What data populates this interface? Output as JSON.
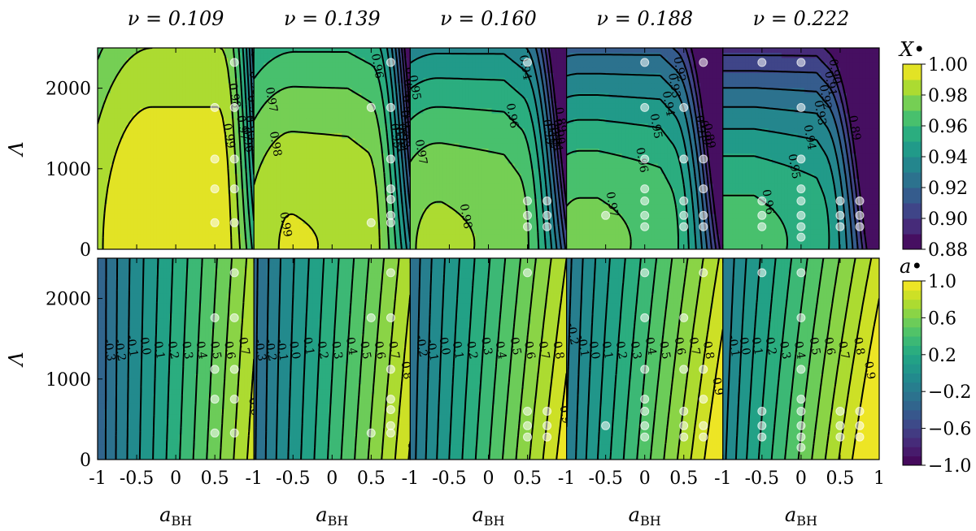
{
  "chart_data": {
    "type": "heatmap",
    "panel_titles": [
      "ν = 0.109",
      "ν = 0.139",
      "ν = 0.160",
      "ν = 0.188",
      "ν = 0.222"
    ],
    "nu": [
      0.109,
      0.139,
      0.16,
      0.188,
      0.222
    ],
    "xlabel": "a",
    "xlabel_sub": "BH",
    "ylabel": "Λ",
    "xlim": [
      -1,
      1
    ],
    "ylim": [
      0,
      2500
    ],
    "x_ticks": [
      "-1",
      "-0.5",
      "0",
      "0.5",
      "1"
    ],
    "y_ticks": [
      "0",
      "1000",
      "2000"
    ],
    "rows": [
      {
        "quantity": "X",
        "colorbar_label": "X•",
        "colorbar_range": [
          0.88,
          1.0
        ],
        "colorbar_ticks": [
          "0.88",
          "0.90",
          "0.92",
          "0.94",
          "0.96",
          "0.98",
          "1.00"
        ],
        "contour_levels": [
          0.89,
          0.9,
          0.91,
          0.92,
          0.93,
          0.94,
          0.95,
          0.96,
          0.97,
          0.98,
          0.99
        ]
      },
      {
        "quantity": "a",
        "colorbar_label": "a•",
        "colorbar_range": [
          -1.0,
          1.0
        ],
        "colorbar_ticks": [
          "−1.0",
          "−0.6",
          "−0.2",
          "0.2",
          "0.6",
          "1.0"
        ],
        "contour_levels": [
          -0.3,
          -0.2,
          -0.1,
          0.0,
          0.1,
          0.2,
          0.3,
          0.4,
          0.5,
          0.6,
          0.7,
          0.8,
          0.9
        ]
      }
    ],
    "simulation_points": [
      {
        "nu": 0.109,
        "a_BH": [
          0.5,
          0.5,
          0.5,
          0.5,
          0.75,
          0.75,
          0.75,
          0.75,
          0.75
        ],
        "Lambda": [
          330,
          750,
          1120,
          1760,
          330,
          750,
          1120,
          1760,
          2320
        ]
      },
      {
        "nu": 0.139,
        "a_BH": [
          0.5,
          0.5,
          0.75,
          0.75,
          0.75,
          0.75,
          0.75,
          0.75,
          0.75
        ],
        "Lambda": [
          330,
          1760,
          330,
          420,
          620,
          750,
          1120,
          1760,
          2320
        ]
      },
      {
        "nu": 0.16,
        "a_BH": [
          0.5,
          0.5,
          0.5,
          0.5,
          0.75,
          0.75,
          0.75
        ],
        "Lambda": [
          280,
          420,
          600,
          2320,
          280,
          420,
          600
        ]
      },
      {
        "nu": 0.188,
        "a_BH": [
          -0.5,
          0,
          0,
          0,
          0,
          0,
          0,
          0,
          0.5,
          0.5,
          0.5,
          0.5,
          0.5,
          0.75,
          0.75,
          0.75,
          0.75,
          0.75
        ],
        "Lambda": [
          420,
          280,
          420,
          600,
          750,
          1120,
          1760,
          2320,
          280,
          420,
          600,
          1120,
          1760,
          280,
          420,
          750,
          1120,
          2320
        ]
      },
      {
        "nu": 0.222,
        "a_BH": [
          -0.5,
          -0.5,
          -0.5,
          -0.5,
          0,
          0,
          0,
          0,
          0,
          0,
          0,
          0,
          0.5,
          0.5,
          0.5,
          0.75,
          0.75,
          0.75
        ],
        "Lambda": [
          280,
          420,
          600,
          2320,
          150,
          280,
          420,
          600,
          750,
          1120,
          1760,
          2320,
          280,
          420,
          600,
          280,
          420,
          600
        ]
      }
    ]
  }
}
